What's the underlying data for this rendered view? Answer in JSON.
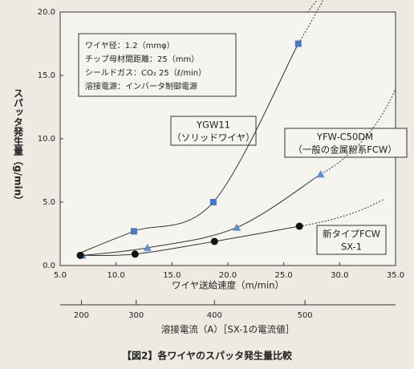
{
  "chart_data": {
    "type": "scatter",
    "ylabel": "スパッタ発生量（g/min）",
    "xlabel": "ワイヤ送給速度（m/min）",
    "x2label": "溶接電流（A）［SX-1の電流値］",
    "caption": "【図2】各ワイヤのスパッタ発生量比較",
    "conditions": [
      "ワイヤ径：1.2（mmφ）",
      "チップ母材間距離：25（mm）",
      "シールドガス：CO₂ 25（ℓ/min）",
      "溶接電源：インバータ制御電源"
    ],
    "xlim": [
      5,
      35
    ],
    "ylim": [
      0,
      20
    ],
    "xticks": [
      {
        "value": 5,
        "label": "5.0"
      },
      {
        "value": 10,
        "label": "10.0"
      },
      {
        "value": 15,
        "label": "15.0"
      },
      {
        "value": 20,
        "label": "20.0"
      },
      {
        "value": 25,
        "label": "25.0"
      },
      {
        "value": 30,
        "label": "30.0"
      },
      {
        "value": 35,
        "label": "35.0"
      }
    ],
    "yticks": [
      {
        "value": 0,
        "label": "0.0"
      },
      {
        "value": 5,
        "label": "5.0"
      },
      {
        "value": 10,
        "label": "10.0"
      },
      {
        "value": 15,
        "label": "15.0"
      },
      {
        "value": 20,
        "label": "20.0"
      }
    ],
    "x2ticks": [
      200,
      300,
      400,
      500
    ],
    "x2ticks_at_x": [
      6.9,
      11.8,
      18.8,
      26.9
    ],
    "series": [
      {
        "name": "YGW11",
        "note": "（ソリッドワイヤ）",
        "marker": "square",
        "color": "#4a78c0",
        "x": [
          11.6,
          18.7,
          26.3
        ],
        "values": [
          2.7,
          5.0,
          17.5
        ]
      },
      {
        "name": "YFW-C50DM",
        "note": "（一般の金属粉系FCW）",
        "marker": "triangle",
        "color": "#5b8dd0",
        "x": [
          7.0,
          12.8,
          20.8,
          28.3
        ],
        "values": [
          0.8,
          1.4,
          3.0,
          7.2
        ]
      },
      {
        "name": "新タイプFCW",
        "note": "SX-1",
        "marker": "circle",
        "color": "#111111",
        "x": [
          6.8,
          11.7,
          18.8,
          26.4
        ],
        "values": [
          0.8,
          0.9,
          1.9,
          3.1
        ]
      }
    ]
  }
}
